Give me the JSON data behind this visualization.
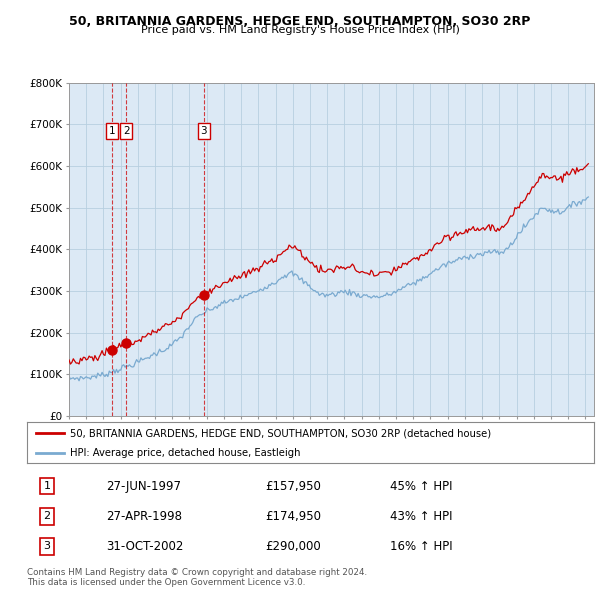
{
  "title1": "50, BRITANNIA GARDENS, HEDGE END, SOUTHAMPTON, SO30 2RP",
  "title2": "Price paid vs. HM Land Registry's House Price Index (HPI)",
  "bg_color": "#dce9f5",
  "red_color": "#cc0000",
  "blue_color": "#7aaad0",
  "grid_color": "#b8cfe0",
  "sale_dates": [
    1997.49,
    1998.32,
    2002.83
  ],
  "sale_prices": [
    157950,
    174950,
    290000
  ],
  "sale_labels": [
    "1",
    "2",
    "3"
  ],
  "legend_line1": "50, BRITANNIA GARDENS, HEDGE END, SOUTHAMPTON, SO30 2RP (detached house)",
  "legend_line2": "HPI: Average price, detached house, Eastleigh",
  "table_rows": [
    [
      "1",
      "27-JUN-1997",
      "£157,950",
      "45% ↑ HPI"
    ],
    [
      "2",
      "27-APR-1998",
      "£174,950",
      "43% ↑ HPI"
    ],
    [
      "3",
      "31-OCT-2002",
      "£290,000",
      "16% ↑ HPI"
    ]
  ],
  "footer": "Contains HM Land Registry data © Crown copyright and database right 2024.\nThis data is licensed under the Open Government Licence v3.0.",
  "ylim": [
    0,
    800000
  ],
  "xlim_start": 1995.0,
  "xlim_end": 2025.5
}
